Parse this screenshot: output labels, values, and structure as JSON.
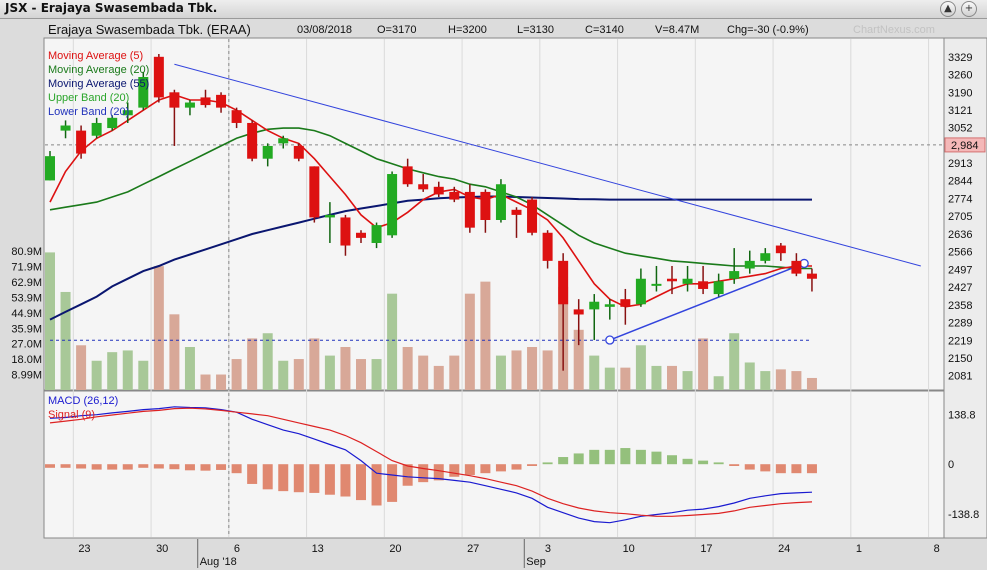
{
  "window": {
    "title": "JSX - Erajaya Swasembada Tbk.",
    "btn_up": "▲",
    "btn_plus": "+"
  },
  "header": {
    "name": "Erajaya Swasembada Tbk. (ERAA)",
    "date": "03/08/2018",
    "open": "O=3170",
    "high": "H=3200",
    "low": "L=3130",
    "close": "C=3140",
    "volume": "V=8.47M",
    "change": "Chg=-30 (-0.9%)",
    "watermark": "ChartNexus.com"
  },
  "chart_data": [
    {
      "type": "candlestick",
      "legend": [
        {
          "name": "Moving Average (5)",
          "color": "#dd1111"
        },
        {
          "name": "Moving Average (20)",
          "color": "#1a7a1a"
        },
        {
          "name": "Moving Average (55)",
          "color": "#0a1670"
        },
        {
          "name": "Upper Band (20)",
          "color": "#2aa52a"
        },
        {
          "name": "Lower Band (20)",
          "color": "#2233bb"
        }
      ],
      "ylim": [
        2040,
        3340
      ],
      "price_ticks": [
        "3329",
        "3260",
        "3190",
        "3121",
        "3052",
        "2913",
        "2844",
        "2774",
        "2705",
        "2636",
        "2566",
        "2497",
        "2427",
        "2358",
        "2289",
        "2219",
        "2150",
        "2081"
      ],
      "price_tick_values": [
        3329,
        3260,
        3190,
        3121,
        3052,
        2913,
        2844,
        2774,
        2705,
        2636,
        2566,
        2497,
        2427,
        2358,
        2289,
        2219,
        2150,
        2081
      ],
      "price_marker": "2,984",
      "price_marker_value": 2984,
      "volume_ticks": [
        "80.9M",
        "71.9M",
        "62.9M",
        "53.9M",
        "44.9M",
        "35.9M",
        "27.0M",
        "18.0M",
        "8.99M"
      ],
      "volume_tick_values": [
        80.9,
        71.9,
        62.9,
        53.9,
        44.9,
        35.9,
        27.0,
        18.0,
        8.99
      ],
      "volume_max": 100,
      "x_ticks": [
        "23",
        "30",
        "6",
        "13",
        "20",
        "27",
        "3",
        "10",
        "17",
        "24",
        "1",
        "8"
      ],
      "x_tick_pos": [
        2,
        7,
        12,
        17,
        22,
        27,
        32,
        37,
        42,
        47,
        52,
        57
      ],
      "month_labels": [
        {
          "label": "Aug '18",
          "pos": 10
        },
        {
          "label": "Sep",
          "pos": 31
        }
      ],
      "candles": [
        {
          "o": 2845,
          "h": 2960,
          "l": 2845,
          "c": 2940,
          "v": 80
        },
        {
          "o": 3040,
          "h": 3080,
          "l": 3010,
          "c": 3060,
          "v": 57
        },
        {
          "o": 3040,
          "h": 3060,
          "l": 2930,
          "c": 2950,
          "v": 26
        },
        {
          "o": 3020,
          "h": 3090,
          "l": 3010,
          "c": 3070,
          "v": 17
        },
        {
          "o": 3050,
          "h": 3100,
          "l": 3040,
          "c": 3090,
          "v": 22
        },
        {
          "o": 3100,
          "h": 3150,
          "l": 3070,
          "c": 3120,
          "v": 23
        },
        {
          "o": 3130,
          "h": 3270,
          "l": 3120,
          "c": 3250,
          "v": 17
        },
        {
          "o": 3329,
          "h": 3340,
          "l": 3150,
          "c": 3170,
          "v": 72
        },
        {
          "o": 3190,
          "h": 3200,
          "l": 2980,
          "c": 3130,
          "v": 44
        },
        {
          "o": 3130,
          "h": 3160,
          "l": 3100,
          "c": 3150,
          "v": 25
        },
        {
          "o": 3170,
          "h": 3200,
          "l": 3130,
          "c": 3140,
          "v": 9
        },
        {
          "o": 3180,
          "h": 3190,
          "l": 3110,
          "c": 3130,
          "v": 9
        },
        {
          "o": 3120,
          "h": 3130,
          "l": 3050,
          "c": 3070,
          "v": 18
        },
        {
          "o": 3070,
          "h": 3080,
          "l": 2920,
          "c": 2930,
          "v": 30
        },
        {
          "o": 2930,
          "h": 2990,
          "l": 2900,
          "c": 2980,
          "v": 33
        },
        {
          "o": 2990,
          "h": 3020,
          "l": 2970,
          "c": 3010,
          "v": 17
        },
        {
          "o": 2980,
          "h": 2990,
          "l": 2920,
          "c": 2930,
          "v": 18
        },
        {
          "o": 2900,
          "h": 2900,
          "l": 2680,
          "c": 2700,
          "v": 30
        },
        {
          "o": 2700,
          "h": 2760,
          "l": 2600,
          "c": 2710,
          "v": 20
        },
        {
          "o": 2700,
          "h": 2710,
          "l": 2550,
          "c": 2590,
          "v": 25
        },
        {
          "o": 2640,
          "h": 2650,
          "l": 2600,
          "c": 2620,
          "v": 18
        },
        {
          "o": 2600,
          "h": 2680,
          "l": 2580,
          "c": 2670,
          "v": 18
        },
        {
          "o": 2630,
          "h": 2880,
          "l": 2620,
          "c": 2870,
          "v": 56
        },
        {
          "o": 2900,
          "h": 2930,
          "l": 2820,
          "c": 2830,
          "v": 25
        },
        {
          "o": 2830,
          "h": 2870,
          "l": 2800,
          "c": 2810,
          "v": 20
        },
        {
          "o": 2820,
          "h": 2840,
          "l": 2780,
          "c": 2790,
          "v": 14
        },
        {
          "o": 2800,
          "h": 2820,
          "l": 2760,
          "c": 2770,
          "v": 20
        },
        {
          "o": 2800,
          "h": 2830,
          "l": 2640,
          "c": 2660,
          "v": 56
        },
        {
          "o": 2800,
          "h": 2810,
          "l": 2640,
          "c": 2690,
          "v": 63
        },
        {
          "o": 2690,
          "h": 2850,
          "l": 2680,
          "c": 2830,
          "v": 20
        },
        {
          "o": 2730,
          "h": 2740,
          "l": 2620,
          "c": 2710,
          "v": 23
        },
        {
          "o": 2770,
          "h": 2780,
          "l": 2630,
          "c": 2640,
          "v": 25
        },
        {
          "o": 2640,
          "h": 2650,
          "l": 2500,
          "c": 2530,
          "v": 23
        },
        {
          "o": 2530,
          "h": 2560,
          "l": 2100,
          "c": 2360,
          "v": 60
        },
        {
          "o": 2340,
          "h": 2380,
          "l": 2200,
          "c": 2320,
          "v": 35
        },
        {
          "o": 2340,
          "h": 2400,
          "l": 2220,
          "c": 2370,
          "v": 20
        },
        {
          "o": 2350,
          "h": 2380,
          "l": 2300,
          "c": 2360,
          "v": 13
        },
        {
          "o": 2380,
          "h": 2420,
          "l": 2280,
          "c": 2350,
          "v": 13
        },
        {
          "o": 2360,
          "h": 2500,
          "l": 2350,
          "c": 2460,
          "v": 26
        },
        {
          "o": 2440,
          "h": 2510,
          "l": 2410,
          "c": 2440,
          "v": 14
        },
        {
          "o": 2460,
          "h": 2510,
          "l": 2400,
          "c": 2450,
          "v": 14
        },
        {
          "o": 2440,
          "h": 2510,
          "l": 2410,
          "c": 2460,
          "v": 11
        },
        {
          "o": 2450,
          "h": 2510,
          "l": 2400,
          "c": 2420,
          "v": 30
        },
        {
          "o": 2400,
          "h": 2480,
          "l": 2390,
          "c": 2450,
          "v": 8
        },
        {
          "o": 2460,
          "h": 2580,
          "l": 2440,
          "c": 2490,
          "v": 33
        },
        {
          "o": 2500,
          "h": 2570,
          "l": 2480,
          "c": 2530,
          "v": 16
        },
        {
          "o": 2530,
          "h": 2580,
          "l": 2520,
          "c": 2560,
          "v": 11
        },
        {
          "o": 2590,
          "h": 2600,
          "l": 2530,
          "c": 2560,
          "v": 12
        },
        {
          "o": 2530,
          "h": 2560,
          "l": 2470,
          "c": 2480,
          "v": 11
        },
        {
          "o": 2480,
          "h": 2500,
          "l": 2410,
          "c": 2460,
          "v": 7
        }
      ],
      "ma5": [
        2760,
        2880,
        2960,
        3010,
        3040,
        3080,
        3120,
        3160,
        3180,
        3160,
        3160,
        3150,
        3120,
        3080,
        3040,
        3010,
        2990,
        2930,
        2860,
        2790,
        2710,
        2660,
        2680,
        2720,
        2770,
        2800,
        2810,
        2780,
        2770,
        2790,
        2760,
        2730,
        2690,
        2620,
        2530,
        2440,
        2380,
        2350,
        2360,
        2390,
        2420,
        2440,
        2440,
        2450,
        2460,
        2470,
        2480,
        2500,
        2510,
        2510
      ],
      "ma20": [
        2730,
        2740,
        2750,
        2760,
        2780,
        2800,
        2830,
        2860,
        2890,
        2920,
        2950,
        2980,
        3010,
        3030,
        3045,
        3050,
        3050,
        3040,
        3020,
        2990,
        2960,
        2930,
        2910,
        2890,
        2875,
        2860,
        2850,
        2830,
        2820,
        2800,
        2780,
        2750,
        2710,
        2670,
        2630,
        2600,
        2580,
        2560,
        2550,
        2540,
        2530,
        2525,
        2520,
        2515,
        2510,
        2510,
        2510,
        2505,
        2500,
        2500
      ],
      "ma55": [
        2300,
        2330,
        2360,
        2390,
        2430,
        2460,
        2490,
        2510,
        2535,
        2555,
        2575,
        2595,
        2615,
        2635,
        2650,
        2665,
        2680,
        2695,
        2710,
        2725,
        2735,
        2745,
        2755,
        2765,
        2770,
        2775,
        2778,
        2780,
        2782,
        2782,
        2780,
        2778,
        2776,
        2774,
        2772,
        2771,
        2770,
        2770,
        2770,
        2770,
        2770,
        2770,
        2770,
        2770,
        2770,
        2770,
        2770,
        2770,
        2770,
        2770
      ],
      "upper_band": [
        null,
        null,
        null,
        null,
        null,
        null,
        null,
        null,
        null,
        null,
        null,
        null,
        null,
        null,
        null,
        null,
        null,
        null,
        null,
        null,
        null,
        null,
        null,
        null,
        null,
        null,
        null,
        null,
        null,
        null,
        null,
        null,
        null,
        null,
        null,
        null,
        null,
        null,
        null,
        null,
        null,
        null,
        null,
        null,
        null,
        null,
        null,
        null,
        null,
        null
      ],
      "lower_band": [
        2219,
        2219,
        2219,
        2219,
        2219,
        2219,
        2219,
        2219,
        2219,
        2219,
        2219,
        2219,
        2219,
        2219,
        2219,
        2219,
        2219,
        2219,
        2219,
        2219,
        2219,
        2219,
        2219,
        2219,
        2219,
        2219,
        2219,
        2219,
        2219,
        2219,
        2219,
        2219,
        2219,
        2219,
        2219,
        2219,
        2219,
        2219,
        2219,
        2219,
        2219,
        2219,
        2219,
        2219,
        2219,
        2219,
        2219,
        2219,
        2219,
        2219
      ],
      "trendline_upper": [
        [
          8,
          3300
        ],
        [
          56,
          2510
        ]
      ],
      "trendline_lower": [
        [
          36,
          2220
        ],
        [
          48.5,
          2520
        ]
      ]
    },
    {
      "type": "bar",
      "legend": [
        {
          "name": "MACD (26,12)",
          "color": "#1a1ad0"
        },
        {
          "name": "Signal (9)",
          "color": "#dd2222"
        }
      ],
      "ylim": [
        -200,
        190
      ],
      "ticks": [
        "138.8",
        "0",
        "-138.8"
      ],
      "tick_values": [
        138.8,
        0,
        -138.8
      ],
      "histogram": [
        -10,
        -10,
        -12,
        -15,
        -15,
        -15,
        -10,
        -12,
        -14,
        -17,
        -18,
        -16,
        -25,
        -55,
        -70,
        -75,
        -78,
        -80,
        -85,
        -90,
        -100,
        -115,
        -105,
        -60,
        -50,
        -45,
        -35,
        -30,
        -25,
        -20,
        -15,
        -5,
        5,
        20,
        30,
        40,
        40,
        45,
        40,
        35,
        25,
        15,
        10,
        5,
        -5,
        -15,
        -20,
        -25,
        -25,
        -25
      ],
      "macd": [
        128,
        130,
        135,
        138,
        143,
        147,
        152,
        155,
        160,
        158,
        157,
        152,
        145,
        125,
        110,
        95,
        85,
        70,
        55,
        40,
        10,
        -25,
        -30,
        -35,
        -38,
        -40,
        -45,
        -50,
        -60,
        -70,
        -80,
        -95,
        -120,
        -135,
        -150,
        -160,
        -163,
        -155,
        -145,
        -140,
        -135,
        -128,
        -125,
        -118,
        -108,
        -95,
        -88,
        -82,
        -80,
        -78
      ],
      "signal": [
        115,
        120,
        125,
        132,
        137,
        142,
        147,
        150,
        155,
        156,
        154,
        150,
        145,
        140,
        135,
        125,
        115,
        105,
        95,
        80,
        60,
        35,
        10,
        -5,
        -12,
        -18,
        -25,
        -32,
        -40,
        -50,
        -60,
        -75,
        -95,
        -110,
        -122,
        -130,
        -135,
        -138,
        -142,
        -145,
        -145,
        -143,
        -140,
        -137,
        -130,
        -120,
        -115,
        -110,
        -107,
        -105
      ]
    }
  ]
}
